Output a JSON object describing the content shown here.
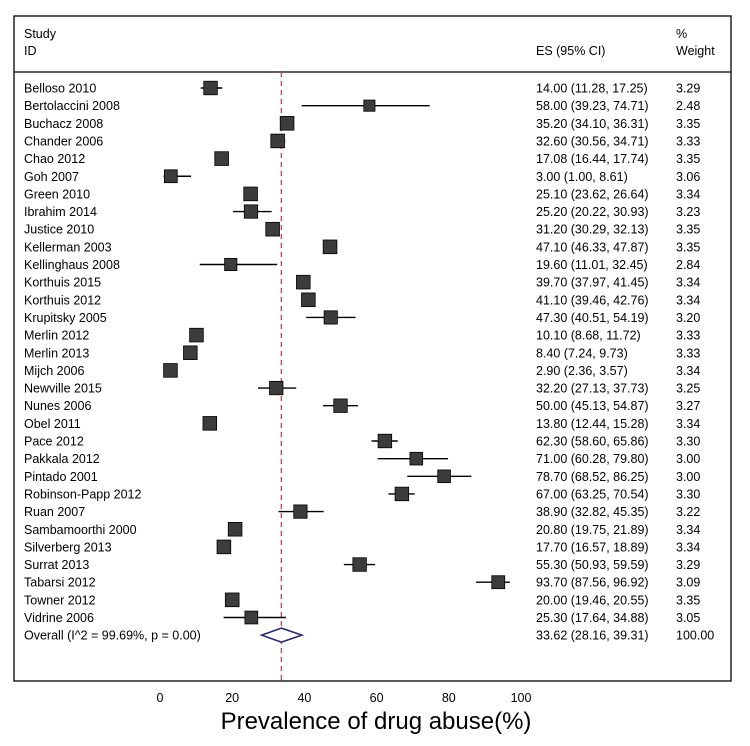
{
  "chart_data": {
    "type": "forest",
    "header": {
      "study_line1": "Study",
      "study_line2": "ID",
      "es_label": "ES (95% CI)",
      "weight_line1": "%",
      "weight_line2": "Weight"
    },
    "studies": [
      {
        "label": "Belloso 2010",
        "es": 14.0,
        "lo": 11.28,
        "hi": 17.25,
        "ci_text": "14.00 (11.28, 17.25)",
        "weight": 3.29,
        "weight_text": "3.29"
      },
      {
        "label": "Bertolaccini 2008",
        "es": 58.0,
        "lo": 39.23,
        "hi": 74.71,
        "ci_text": "58.00 (39.23, 74.71)",
        "weight": 2.48,
        "weight_text": "2.48"
      },
      {
        "label": "Buchacz 2008",
        "es": 35.2,
        "lo": 34.1,
        "hi": 36.31,
        "ci_text": "35.20 (34.10, 36.31)",
        "weight": 3.35,
        "weight_text": "3.35"
      },
      {
        "label": "Chander 2006",
        "es": 32.6,
        "lo": 30.56,
        "hi": 34.71,
        "ci_text": "32.60 (30.56, 34.71)",
        "weight": 3.33,
        "weight_text": "3.33"
      },
      {
        "label": "Chao 2012",
        "es": 17.08,
        "lo": 16.44,
        "hi": 17.74,
        "ci_text": "17.08 (16.44, 17.74)",
        "weight": 3.35,
        "weight_text": "3.35"
      },
      {
        "label": "Goh 2007",
        "es": 3.0,
        "lo": 1.0,
        "hi": 8.61,
        "ci_text": "3.00 (1.00, 8.61)",
        "weight": 3.06,
        "weight_text": "3.06"
      },
      {
        "label": "Green 2010",
        "es": 25.1,
        "lo": 23.62,
        "hi": 26.64,
        "ci_text": "25.10 (23.62, 26.64)",
        "weight": 3.34,
        "weight_text": "3.34"
      },
      {
        "label": "Ibrahim 2014",
        "es": 25.2,
        "lo": 20.22,
        "hi": 30.93,
        "ci_text": "25.20 (20.22, 30.93)",
        "weight": 3.23,
        "weight_text": "3.23"
      },
      {
        "label": "Justice 2010",
        "es": 31.2,
        "lo": 30.29,
        "hi": 32.13,
        "ci_text": "31.20 (30.29, 32.13)",
        "weight": 3.35,
        "weight_text": "3.35"
      },
      {
        "label": "Kellerman 2003",
        "es": 47.1,
        "lo": 46.33,
        "hi": 47.87,
        "ci_text": "47.10 (46.33, 47.87)",
        "weight": 3.35,
        "weight_text": "3.35"
      },
      {
        "label": "Kellinghaus 2008",
        "es": 19.6,
        "lo": 11.01,
        "hi": 32.45,
        "ci_text": "19.60 (11.01, 32.45)",
        "weight": 2.84,
        "weight_text": "2.84"
      },
      {
        "label": "Korthuis 2015",
        "es": 39.7,
        "lo": 37.97,
        "hi": 41.45,
        "ci_text": "39.70 (37.97, 41.45)",
        "weight": 3.34,
        "weight_text": "3.34"
      },
      {
        "label": "Korthuis 2012",
        "es": 41.1,
        "lo": 39.46,
        "hi": 42.76,
        "ci_text": "41.10 (39.46, 42.76)",
        "weight": 3.34,
        "weight_text": "3.34"
      },
      {
        "label": "Krupitsky 2005",
        "es": 47.3,
        "lo": 40.51,
        "hi": 54.19,
        "ci_text": "47.30 (40.51, 54.19)",
        "weight": 3.2,
        "weight_text": "3.20"
      },
      {
        "label": "Merlin 2012",
        "es": 10.1,
        "lo": 8.68,
        "hi": 11.72,
        "ci_text": "10.10 (8.68, 11.72)",
        "weight": 3.33,
        "weight_text": "3.33"
      },
      {
        "label": "Merlin 2013",
        "es": 8.4,
        "lo": 7.24,
        "hi": 9.73,
        "ci_text": "8.40 (7.24, 9.73)",
        "weight": 3.33,
        "weight_text": "3.33"
      },
      {
        "label": "Mijch 2006",
        "es": 2.9,
        "lo": 2.36,
        "hi": 3.57,
        "ci_text": "2.90 (2.36, 3.57)",
        "weight": 3.34,
        "weight_text": "3.34"
      },
      {
        "label": "Newville 2015",
        "es": 32.2,
        "lo": 27.13,
        "hi": 37.73,
        "ci_text": "32.20 (27.13, 37.73)",
        "weight": 3.25,
        "weight_text": "3.25"
      },
      {
        "label": "Nunes 2006",
        "es": 50.0,
        "lo": 45.13,
        "hi": 54.87,
        "ci_text": "50.00 (45.13, 54.87)",
        "weight": 3.27,
        "weight_text": "3.27"
      },
      {
        "label": "Obel 2011",
        "es": 13.8,
        "lo": 12.44,
        "hi": 15.28,
        "ci_text": "13.80 (12.44, 15.28)",
        "weight": 3.34,
        "weight_text": "3.34"
      },
      {
        "label": "Pace 2012",
        "es": 62.3,
        "lo": 58.6,
        "hi": 65.86,
        "ci_text": "62.30 (58.60, 65.86)",
        "weight": 3.3,
        "weight_text": "3.30"
      },
      {
        "label": "Pakkala 2012",
        "es": 71.0,
        "lo": 60.28,
        "hi": 79.8,
        "ci_text": "71.00 (60.28, 79.80)",
        "weight": 3.0,
        "weight_text": "3.00"
      },
      {
        "label": "Pintado 2001",
        "es": 78.7,
        "lo": 68.52,
        "hi": 86.25,
        "ci_text": "78.70 (68.52, 86.25)",
        "weight": 3.0,
        "weight_text": "3.00"
      },
      {
        "label": "Robinson-Papp 2012",
        "es": 67.0,
        "lo": 63.25,
        "hi": 70.54,
        "ci_text": "67.00 (63.25, 70.54)",
        "weight": 3.3,
        "weight_text": "3.30"
      },
      {
        "label": "Ruan 2007",
        "es": 38.9,
        "lo": 32.82,
        "hi": 45.35,
        "ci_text": "38.90 (32.82, 45.35)",
        "weight": 3.22,
        "weight_text": "3.22"
      },
      {
        "label": "Sambamoorthi 2000",
        "es": 20.8,
        "lo": 19.75,
        "hi": 21.89,
        "ci_text": "20.80 (19.75, 21.89)",
        "weight": 3.34,
        "weight_text": "3.34"
      },
      {
        "label": "Silverberg 2013",
        "es": 17.7,
        "lo": 16.57,
        "hi": 18.89,
        "ci_text": "17.70 (16.57, 18.89)",
        "weight": 3.34,
        "weight_text": "3.34"
      },
      {
        "label": "Surrat 2013",
        "es": 55.3,
        "lo": 50.93,
        "hi": 59.59,
        "ci_text": "55.30 (50.93, 59.59)",
        "weight": 3.29,
        "weight_text": "3.29"
      },
      {
        "label": "Tabarsi 2012",
        "es": 93.7,
        "lo": 87.56,
        "hi": 96.92,
        "ci_text": "93.70 (87.56, 96.92)",
        "weight": 3.09,
        "weight_text": "3.09"
      },
      {
        "label": "Towner 2012",
        "es": 20.0,
        "lo": 19.46,
        "hi": 20.55,
        "ci_text": "20.00 (19.46, 20.55)",
        "weight": 3.35,
        "weight_text": "3.35"
      },
      {
        "label": "Vidrine 2006",
        "es": 25.3,
        "lo": 17.64,
        "hi": 34.88,
        "ci_text": "25.30 (17.64, 34.88)",
        "weight": 3.05,
        "weight_text": "3.05"
      }
    ],
    "overall": {
      "label": "Overall  (I^2 = 99.69%, p = 0.00)",
      "es": 33.62,
      "lo": 28.16,
      "hi": 39.31,
      "ci_text": "33.62 (28.16, 39.31)",
      "weight": 100.0,
      "weight_text": "100.00"
    },
    "x_axis": {
      "label": "Prevalence of drug abuse(%)",
      "ticks": [
        0,
        20,
        40,
        60,
        80,
        100
      ],
      "range": [
        0,
        100
      ]
    },
    "reference_line_value": 33.62,
    "colors": {
      "marker": "#3c3c3c",
      "ci_line": "#000000",
      "reference_line": "#c0504d",
      "diamond": "#2b2b7a",
      "frame": "#000000"
    }
  }
}
